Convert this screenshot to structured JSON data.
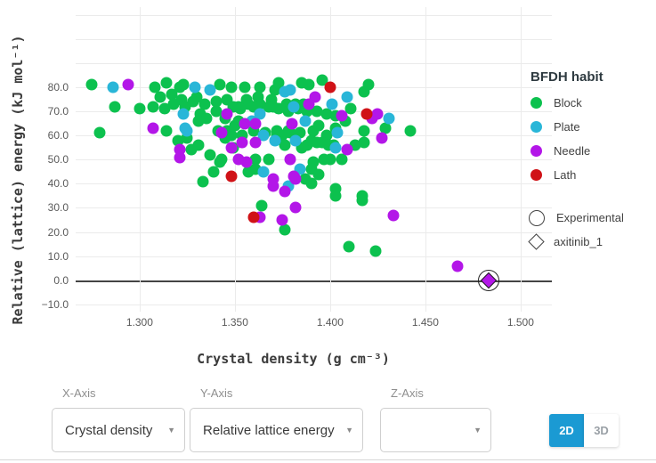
{
  "chart_data": {
    "type": "scatter",
    "title": "",
    "xlabel": "Crystal density (g cm⁻³)",
    "ylabel": "Relative (lattice) energy (kJ mol⁻¹)",
    "legend_title": "BFDH habit",
    "legend_position": "top-right",
    "grid": true,
    "xlim": [
      1.2664,
      1.5164
    ],
    "ylim": [
      -13,
      113.2
    ],
    "xticks": [
      {
        "v": 1.3,
        "t": "1.300"
      },
      {
        "v": 1.35,
        "t": "1.350"
      },
      {
        "v": 1.4,
        "t": "1.400"
      },
      {
        "v": 1.45,
        "t": "1.450"
      },
      {
        "v": 1.5,
        "t": "1.500"
      }
    ],
    "yticks": [
      {
        "v": -10,
        "t": "−10.0"
      },
      {
        "v": 0,
        "t": "0.0"
      },
      {
        "v": 10,
        "t": "10.0"
      },
      {
        "v": 20,
        "t": "20.0"
      },
      {
        "v": 30,
        "t": "30.0"
      },
      {
        "v": 40,
        "t": "40.0"
      },
      {
        "v": 50,
        "t": "50.0"
      },
      {
        "v": 60,
        "t": "60.0"
      },
      {
        "v": 70,
        "t": "70.0"
      },
      {
        "v": 80,
        "t": "80.0"
      }
    ],
    "yticks_minor": [
      90,
      100,
      110
    ],
    "series": [
      {
        "name": "Block",
        "color": "#0cc14e",
        "points": [
          [
            1.275,
            81
          ],
          [
            1.308,
            80
          ],
          [
            1.314,
            82
          ],
          [
            1.321,
            80
          ],
          [
            1.323,
            81
          ],
          [
            1.33,
            76
          ],
          [
            1.342,
            81
          ],
          [
            1.348,
            80
          ],
          [
            1.355,
            80
          ],
          [
            1.363,
            80
          ],
          [
            1.371,
            79
          ],
          [
            1.373,
            82
          ],
          [
            1.385,
            82
          ],
          [
            1.389,
            81
          ],
          [
            1.396,
            83
          ],
          [
            1.418,
            78
          ],
          [
            1.42,
            81
          ],
          [
            1.311,
            76
          ],
          [
            1.317,
            77
          ],
          [
            1.322,
            75
          ],
          [
            1.328,
            74
          ],
          [
            1.334,
            73
          ],
          [
            1.34,
            74
          ],
          [
            1.346,
            75
          ],
          [
            1.352,
            72
          ],
          [
            1.356,
            75
          ],
          [
            1.357,
            73
          ],
          [
            1.362,
            76
          ],
          [
            1.363,
            73
          ],
          [
            1.368,
            72
          ],
          [
            1.369,
            75
          ],
          [
            1.373,
            71
          ],
          [
            1.377,
            73
          ],
          [
            1.378,
            70
          ],
          [
            1.382,
            73
          ],
          [
            1.383,
            71
          ],
          [
            1.386,
            73
          ],
          [
            1.388,
            70
          ],
          [
            1.393,
            70
          ],
          [
            1.398,
            69
          ],
          [
            1.403,
            68
          ],
          [
            1.408,
            66
          ],
          [
            1.411,
            71
          ],
          [
            1.349,
            72
          ],
          [
            1.353,
            71
          ],
          [
            1.36,
            72
          ],
          [
            1.37,
            72
          ],
          [
            1.318,
            73
          ],
          [
            1.287,
            72
          ],
          [
            1.3,
            71
          ],
          [
            1.307,
            72
          ],
          [
            1.313,
            71
          ],
          [
            1.324,
            72
          ],
          [
            1.332,
            69
          ],
          [
            1.335,
            67
          ],
          [
            1.34,
            70
          ],
          [
            1.345,
            67
          ],
          [
            1.352,
            66
          ],
          [
            1.331,
            66
          ],
          [
            1.279,
            61
          ],
          [
            1.314,
            62
          ],
          [
            1.341,
            62
          ],
          [
            1.345,
            59
          ],
          [
            1.35,
            64
          ],
          [
            1.346,
            62
          ],
          [
            1.394,
            64
          ],
          [
            1.403,
            63
          ],
          [
            1.418,
            62
          ],
          [
            1.429,
            63
          ],
          [
            1.442,
            62
          ],
          [
            1.366,
            61
          ],
          [
            1.372,
            60
          ],
          [
            1.378,
            62
          ],
          [
            1.384,
            61
          ],
          [
            1.348,
            60
          ],
          [
            1.354,
            60
          ],
          [
            1.36,
            62
          ],
          [
            1.372,
            62
          ],
          [
            1.375,
            60
          ],
          [
            1.379,
            61
          ],
          [
            1.391,
            62
          ],
          [
            1.398,
            60
          ],
          [
            1.32,
            58
          ],
          [
            1.325,
            59
          ],
          [
            1.327,
            54
          ],
          [
            1.331,
            56
          ],
          [
            1.337,
            52
          ],
          [
            1.343,
            50
          ],
          [
            1.349,
            55
          ],
          [
            1.376,
            56
          ],
          [
            1.385,
            55
          ],
          [
            1.388,
            56
          ],
          [
            1.39,
            58
          ],
          [
            1.393,
            57
          ],
          [
            1.396,
            57
          ],
          [
            1.399,
            56
          ],
          [
            1.402,
            56
          ],
          [
            1.413,
            56
          ],
          [
            1.418,
            57
          ],
          [
            1.361,
            50
          ],
          [
            1.368,
            50
          ],
          [
            1.391,
            49
          ],
          [
            1.397,
            50
          ],
          [
            1.4,
            50
          ],
          [
            1.406,
            50
          ],
          [
            1.342,
            49
          ],
          [
            1.339,
            45
          ],
          [
            1.333,
            41
          ],
          [
            1.357,
            45
          ],
          [
            1.361,
            46
          ],
          [
            1.387,
            42
          ],
          [
            1.39,
            40
          ],
          [
            1.39,
            46
          ],
          [
            1.394,
            44
          ],
          [
            1.403,
            38
          ],
          [
            1.403,
            35
          ],
          [
            1.417,
            35
          ],
          [
            1.417,
            33
          ],
          [
            1.364,
            31
          ],
          [
            1.376,
            21
          ],
          [
            1.41,
            14
          ],
          [
            1.424,
            12
          ]
        ]
      },
      {
        "name": "Plate",
        "color": "#29b6d8",
        "points": [
          [
            1.286,
            80
          ],
          [
            1.329,
            80
          ],
          [
            1.337,
            79
          ],
          [
            1.376,
            78
          ],
          [
            1.379,
            79
          ],
          [
            1.409,
            76
          ],
          [
            1.401,
            73
          ],
          [
            1.381,
            72
          ],
          [
            1.323,
            69
          ],
          [
            1.363,
            69
          ],
          [
            1.359,
            66
          ],
          [
            1.387,
            66
          ],
          [
            1.324,
            63
          ],
          [
            1.325,
            62
          ],
          [
            1.365,
            60
          ],
          [
            1.404,
            61
          ],
          [
            1.371,
            58
          ],
          [
            1.382,
            58
          ],
          [
            1.403,
            55
          ],
          [
            1.431,
            67
          ],
          [
            1.365,
            45
          ],
          [
            1.384,
            46
          ],
          [
            1.378,
            39
          ]
        ]
      },
      {
        "name": "Needle",
        "color": "#b316e8",
        "points": [
          [
            1.294,
            81
          ],
          [
            1.392,
            76
          ],
          [
            1.389,
            73
          ],
          [
            1.346,
            69
          ],
          [
            1.406,
            68
          ],
          [
            1.422,
            67
          ],
          [
            1.425,
            69
          ],
          [
            1.307,
            63
          ],
          [
            1.343,
            61
          ],
          [
            1.355,
            65
          ],
          [
            1.361,
            65
          ],
          [
            1.38,
            65
          ],
          [
            1.348,
            55
          ],
          [
            1.354,
            57
          ],
          [
            1.361,
            57
          ],
          [
            1.409,
            54
          ],
          [
            1.427,
            59
          ],
          [
            1.321,
            54
          ],
          [
            1.321,
            51
          ],
          [
            1.352,
            50
          ],
          [
            1.356,
            49
          ],
          [
            1.379,
            50
          ],
          [
            1.37,
            42
          ],
          [
            1.37,
            39
          ],
          [
            1.376,
            37
          ],
          [
            1.381,
            43
          ],
          [
            1.382,
            42
          ],
          [
            1.363,
            26
          ],
          [
            1.382,
            30
          ],
          [
            1.375,
            25
          ],
          [
            1.433,
            27
          ],
          [
            1.467,
            6
          ]
        ]
      },
      {
        "name": "Lath",
        "color": "#d01217",
        "points": [
          [
            1.4,
            80
          ],
          [
            1.419,
            69
          ],
          [
            1.348,
            43
          ],
          [
            1.36,
            26
          ]
        ]
      }
    ],
    "experimental_point": {
      "x": 1.483,
      "y": 0,
      "habit": "Needle"
    },
    "shape_legend": [
      {
        "label": "Experimental",
        "shape": "circle-open"
      },
      {
        "label": "axitinib_1",
        "shape": "diamond-open"
      }
    ]
  },
  "controls": {
    "x_axis": {
      "label": "X-Axis",
      "value": "Crystal density"
    },
    "y_axis": {
      "label": "Y-Axis",
      "value": "Relative lattice energy"
    },
    "z_axis": {
      "label": "Z-Axis",
      "value": ""
    },
    "view_toggle": {
      "options": [
        "2D",
        "3D"
      ],
      "selected": "2D"
    },
    "accent_color": "#1b9ad3"
  }
}
